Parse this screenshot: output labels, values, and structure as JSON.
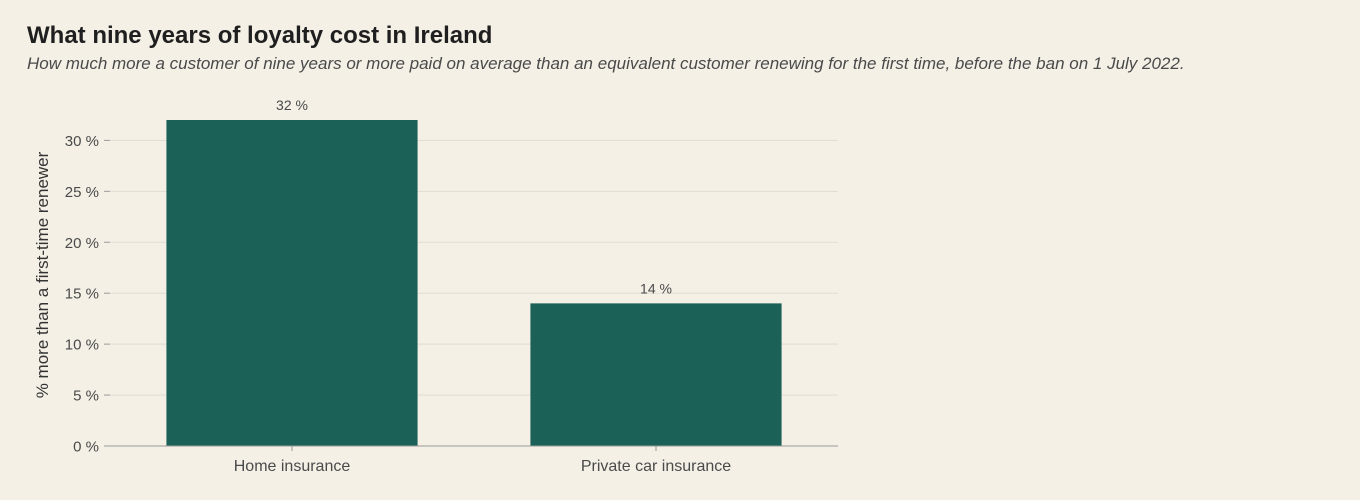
{
  "colors": {
    "background": "#f4f0e6",
    "bar": "#1b6158",
    "grid": "#e2ddd2",
    "axis": "#9a9a9a",
    "text": "#4a4a4a"
  },
  "chart_data": {
    "type": "bar",
    "title": "What nine years of loyalty cost in Ireland",
    "subtitle": "How much more a customer of nine years or more paid on average than an equivalent customer renewing for the first time, before the ban on 1 July 2022.",
    "xlabel": "",
    "ylabel": "% more than a first-time renewer",
    "categories": [
      "Home insurance",
      "Private car insurance"
    ],
    "values": [
      32,
      14
    ],
    "value_labels": [
      "32 %",
      "14 %"
    ],
    "ylim": [
      0,
      32
    ],
    "yticks": [
      0,
      5,
      10,
      15,
      20,
      25,
      30
    ],
    "ytick_labels": [
      "0 %",
      "5 %",
      "10 %",
      "15 %",
      "20 %",
      "25 %",
      "30 %"
    ],
    "grid": true,
    "legend": "none"
  }
}
